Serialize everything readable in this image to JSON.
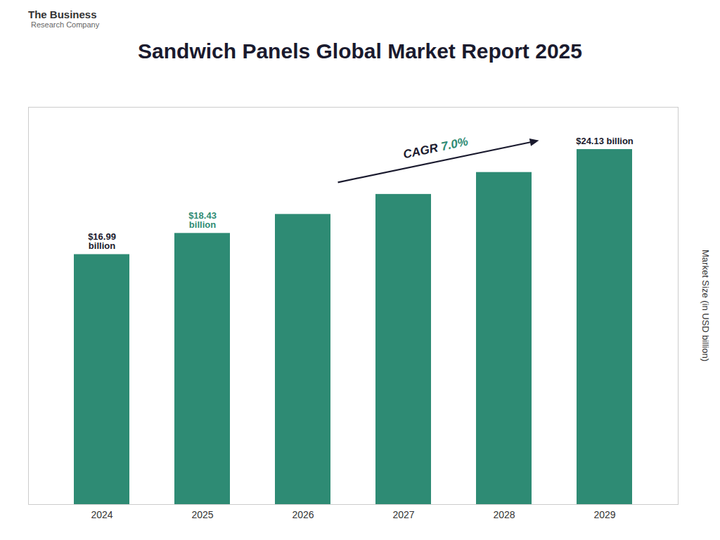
{
  "chart_data": {
    "type": "bar",
    "title": "Sandwich Panels Global Market Report 2025",
    "categories": [
      "2024",
      "2025",
      "2026",
      "2027",
      "2028",
      "2029"
    ],
    "values": [
      16.99,
      18.43,
      19.72,
      21.08,
      22.57,
      24.13
    ],
    "color": "#2e8b74",
    "ylim": [
      0,
      27
    ],
    "ylabel": "Market Size (in USD billion)",
    "tick_labels": "x",
    "annotations": [
      {
        "text": "$16.99\nbillion",
        "category": "2024",
        "color": "#1a1a2e"
      },
      {
        "text": "$18.43\nbillion",
        "category": "2025",
        "color": "#2e8b74"
      },
      {
        "text": "$24.13 billion",
        "category": "2029",
        "color": "#1a1a2e"
      }
    ],
    "cagr": [
      {
        "text": "CAGR",
        "color": "#1a1a2e"
      },
      {
        "text": "7.0%",
        "color": "#2e8b74"
      }
    ],
    "logo": [
      "The Business",
      "Research Company"
    ]
  }
}
